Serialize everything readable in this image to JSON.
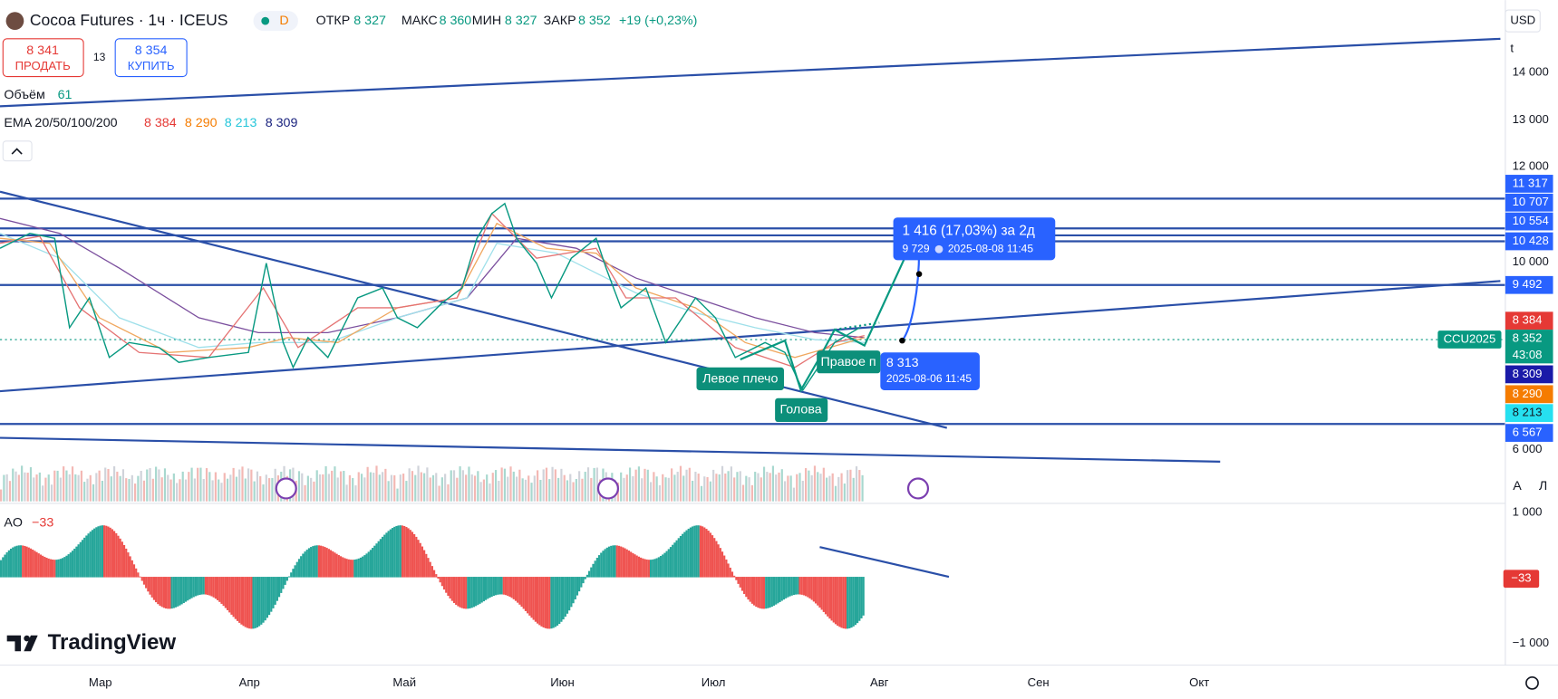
{
  "header": {
    "symbol": "Cocoa Futures · 1ч · ICEUS",
    "badge": "D",
    "ohlc": [
      {
        "label": "ОТКР",
        "value": "8 327"
      },
      {
        "label": "МАКС",
        "value": "8 360"
      },
      {
        "label": "МИН",
        "value": "8 327"
      },
      {
        "label": "ЗАКР",
        "value": "8 352"
      }
    ],
    "change": "+19 (+0,23%)"
  },
  "trade": {
    "sell": {
      "price": "8 341",
      "label": "ПРОДАТЬ"
    },
    "spread": "13",
    "buy": {
      "price": "8 354",
      "label": "КУПИТЬ"
    }
  },
  "indicators": {
    "volume": {
      "label": "Объём",
      "value": "61"
    },
    "ema": {
      "label": "EMA 20/50/100/200",
      "values": [
        {
          "text": "8 384",
          "color": "#e53935"
        },
        {
          "text": "8 290",
          "color": "#f57c00"
        },
        {
          "text": "8 213",
          "color": "#26c6da"
        },
        {
          "text": "8 309",
          "color": "#1a237e"
        }
      ]
    }
  },
  "price_axis": {
    "currency": "USD",
    "unit": "t",
    "ticks": [
      "14 000",
      "13 000",
      "12 000",
      "10 000",
      "6 000"
    ],
    "labels": [
      {
        "text": "11 317",
        "color": "#2962ff"
      },
      {
        "text": "10 707",
        "color": "#2962ff"
      },
      {
        "text": "10 554",
        "color": "#2962ff"
      },
      {
        "text": "10 428",
        "color": "#2962ff"
      },
      {
        "text": "9 492",
        "color": "#2962ff"
      },
      {
        "text": "8 384",
        "color": "#e53935"
      },
      {
        "text": "8 352",
        "color": "#089981"
      },
      {
        "text": "8 309",
        "color": "#1a1aa8"
      },
      {
        "text": "8 290",
        "color": "#f57c00"
      },
      {
        "text": "8 213",
        "color": "#26e0f0"
      },
      {
        "text": "6 567",
        "color": "#2962ff"
      }
    ],
    "countdown": "43:08",
    "symbol_tag": "CCU2025",
    "scale_buttons": [
      "А",
      "Л"
    ]
  },
  "annotations": {
    "measure": {
      "title": "1 416 (17,03%) за 2д",
      "price": "9 729",
      "date": "2025-08-08  11:45"
    },
    "point": {
      "price": "8 313",
      "date": "2025-08-06 11:45"
    },
    "pattern": [
      "Левое плечо",
      "Голова",
      "Правое п"
    ]
  },
  "ao": {
    "label": "AO",
    "value": "−33",
    "ticks": [
      "1 000",
      "−1 000"
    ]
  },
  "x_axis": [
    "Мар",
    "Апр",
    "Май",
    "Июн",
    "Июл",
    "Авг",
    "Сен",
    "Окт"
  ],
  "logo": "TradingView"
}
